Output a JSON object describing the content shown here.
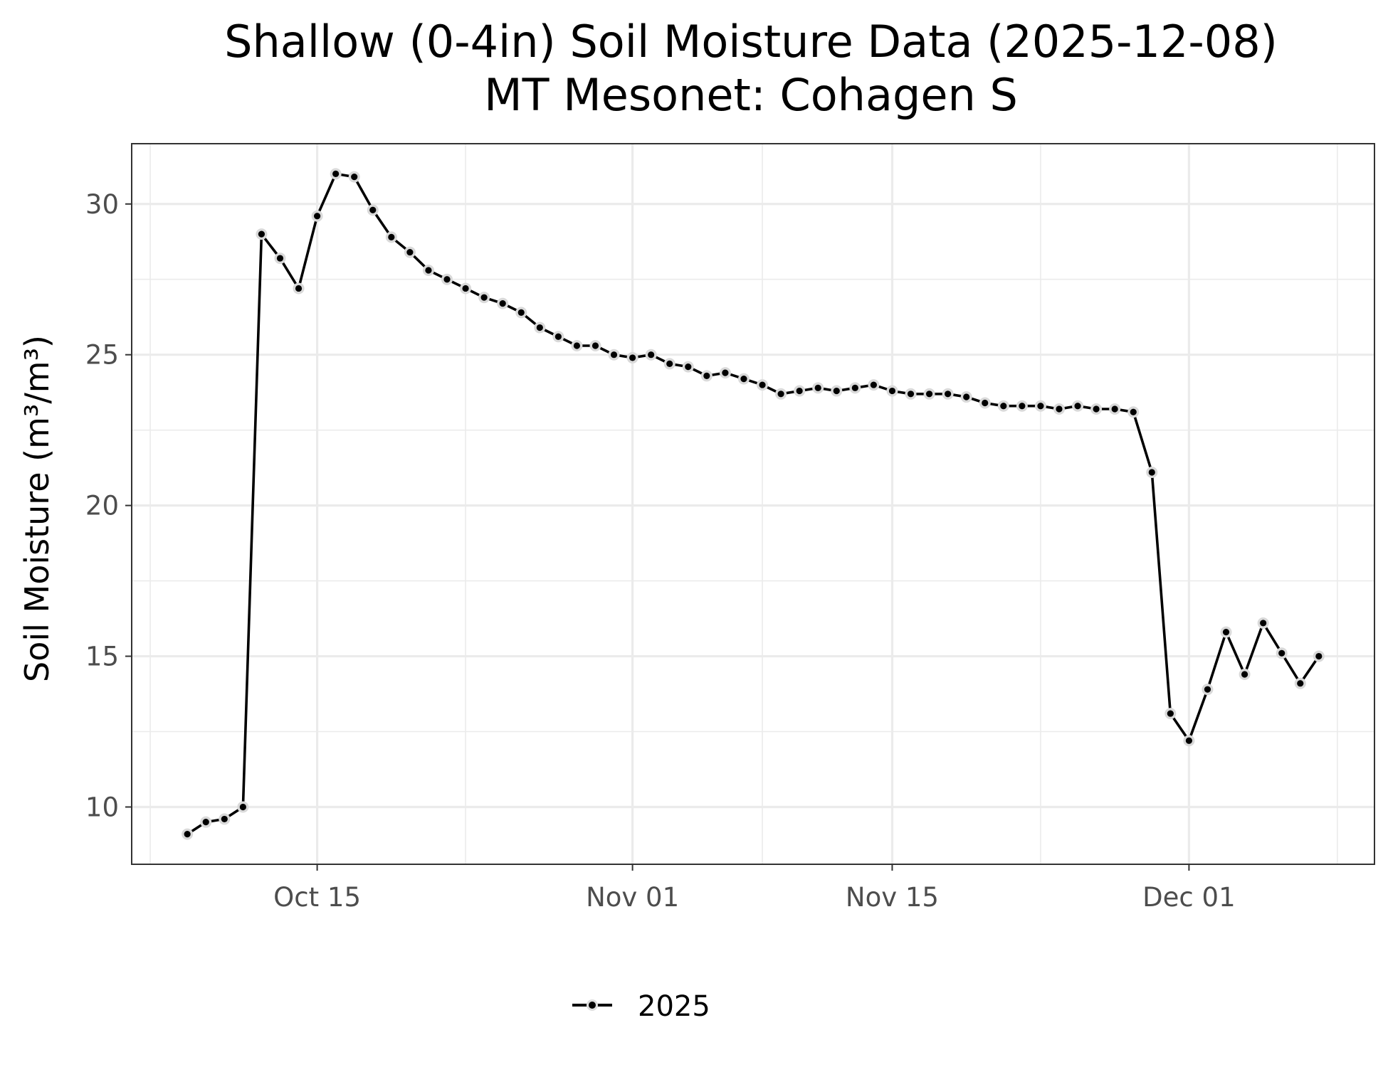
{
  "chart_data": {
    "type": "line",
    "title": "Shallow (0-4in) Soil Moisture Data (2025-12-08)",
    "subtitle": "MT Mesonet: Cohagen S",
    "xlabel": "",
    "ylabel": "Soil Moisture (m³/m³)",
    "xlim": [
      "2025-10-05",
      "2025-12-11"
    ],
    "ylim": [
      8.1,
      32.0
    ],
    "x_ticks": [
      {
        "date": "2025-10-15",
        "label": "Oct 15"
      },
      {
        "date": "2025-11-01",
        "label": "Nov 01"
      },
      {
        "date": "2025-11-15",
        "label": "Nov 15"
      },
      {
        "date": "2025-12-01",
        "label": "Dec 01"
      }
    ],
    "y_ticks": [
      10,
      15,
      20,
      25,
      30
    ],
    "grid": true,
    "legend": {
      "position": "bottom",
      "entries": [
        "2025"
      ]
    },
    "series": [
      {
        "name": "2025",
        "color": "#000000",
        "x": [
          "2025-10-08",
          "2025-10-09",
          "2025-10-10",
          "2025-10-11",
          "2025-10-12",
          "2025-10-13",
          "2025-10-14",
          "2025-10-15",
          "2025-10-16",
          "2025-10-17",
          "2025-10-18",
          "2025-10-19",
          "2025-10-20",
          "2025-10-21",
          "2025-10-22",
          "2025-10-23",
          "2025-10-24",
          "2025-10-25",
          "2025-10-26",
          "2025-10-27",
          "2025-10-28",
          "2025-10-29",
          "2025-10-30",
          "2025-10-31",
          "2025-11-01",
          "2025-11-02",
          "2025-11-03",
          "2025-11-04",
          "2025-11-05",
          "2025-11-06",
          "2025-11-07",
          "2025-11-08",
          "2025-11-09",
          "2025-11-10",
          "2025-11-11",
          "2025-11-12",
          "2025-11-13",
          "2025-11-14",
          "2025-11-15",
          "2025-11-16",
          "2025-11-17",
          "2025-11-18",
          "2025-11-19",
          "2025-11-20",
          "2025-11-21",
          "2025-11-22",
          "2025-11-23",
          "2025-11-24",
          "2025-11-25",
          "2025-11-26",
          "2025-11-27",
          "2025-11-28",
          "2025-11-29",
          "2025-11-30",
          "2025-12-01",
          "2025-12-02",
          "2025-12-03",
          "2025-12-04",
          "2025-12-05",
          "2025-12-06",
          "2025-12-07",
          "2025-12-08"
        ],
        "values": [
          9.1,
          9.5,
          9.6,
          10.0,
          29.0,
          28.2,
          27.2,
          29.6,
          31.0,
          30.9,
          29.8,
          28.9,
          28.4,
          27.8,
          27.5,
          27.2,
          26.9,
          26.7,
          26.4,
          25.9,
          25.6,
          25.3,
          25.3,
          25.0,
          24.9,
          25.0,
          24.7,
          24.6,
          24.3,
          24.4,
          24.2,
          24.0,
          23.7,
          23.8,
          23.9,
          23.8,
          23.9,
          24.0,
          23.8,
          23.7,
          23.7,
          23.7,
          23.6,
          23.4,
          23.3,
          23.3,
          23.3,
          23.2,
          23.3,
          23.2,
          23.2,
          23.1,
          21.1,
          13.1,
          12.2,
          13.9,
          15.8,
          14.4,
          16.1,
          15.1,
          14.1,
          15.0
        ]
      }
    ]
  }
}
